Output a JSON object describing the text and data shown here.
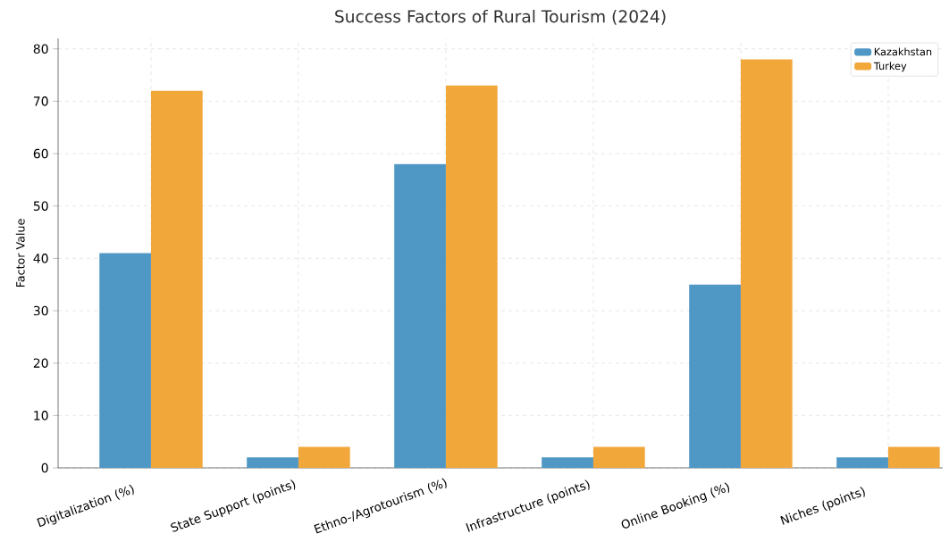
{
  "chart_data": {
    "type": "bar",
    "title": "Success Factors of Rural Tourism (2024)",
    "ylabel": "Factor Value",
    "categories": [
      "Digitalization (%)",
      "State Support (points)",
      "Ethno-/Agrotourism (%)",
      "Infrastructure (points)",
      "Online Booking (%)",
      "Niches (points)"
    ],
    "series": [
      {
        "name": "Kazakhstan",
        "color": "#4f97c5",
        "values": [
          41,
          2,
          58,
          2,
          35,
          2
        ]
      },
      {
        "name": "Turkey",
        "color": "#f2a73b",
        "values": [
          72,
          4,
          73,
          4,
          78,
          4
        ]
      }
    ],
    "ylim": [
      0,
      82
    ],
    "yticks": [
      0,
      10,
      20,
      30,
      40,
      50,
      60,
      70,
      80
    ],
    "grid": true,
    "legend": "top right"
  }
}
